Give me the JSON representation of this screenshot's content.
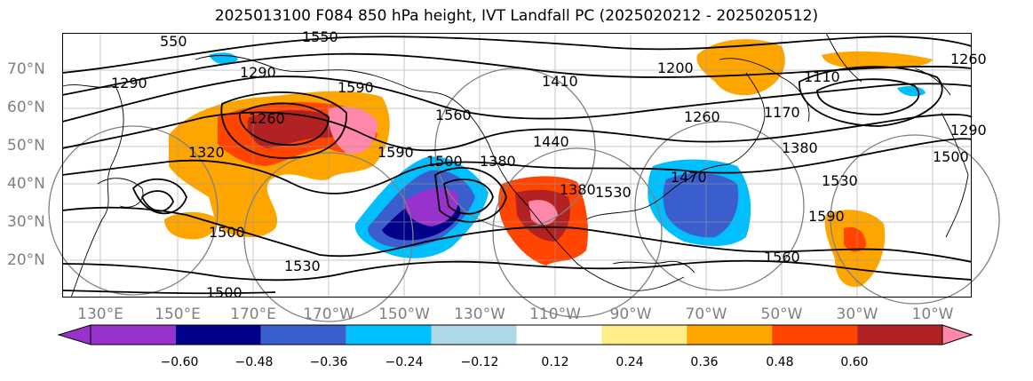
{
  "title": "2025013100 F084 850 hPa height, IVT Landfall PC (2025020212 - 2025020512)",
  "lat_labels": [
    "70°N",
    "60°N",
    "50°N",
    "40°N",
    "30°N",
    "20°N"
  ],
  "lon_labels": [
    "130°E",
    "150°E",
    "170°E",
    "170°W",
    "150°W",
    "130°W",
    "110°W",
    "90°W",
    "70°W",
    "50°W",
    "30°W",
    "10°W"
  ],
  "contour_labels": [
    "550",
    "1550",
    "1290",
    "1290",
    "1260",
    "1320",
    "1590",
    "1590",
    "1560",
    "1500",
    "1530",
    "1500",
    "1380",
    "1380",
    "1440",
    "1470",
    "1260",
    "1110",
    "1170",
    "1380",
    "1530",
    "1590",
    "1560",
    "1500",
    "1530",
    "1200",
    "1260",
    "1290",
    "1410",
    "1500"
  ],
  "colorbar": {
    "ticks": [
      "−0.60",
      "−0.48",
      "−0.36",
      "−0.24",
      "−0.12",
      "0.12",
      "0.24",
      "0.36",
      "0.48",
      "0.60"
    ],
    "colors": [
      "#9932cc",
      "#00008b",
      "#3a5fcd",
      "#00bfff",
      "#add8e6",
      "#ffffff",
      "#ffee88",
      "#ffa500",
      "#ff4500",
      "#b22222",
      "#ff88aa",
      "#ff88aa"
    ]
  }
}
